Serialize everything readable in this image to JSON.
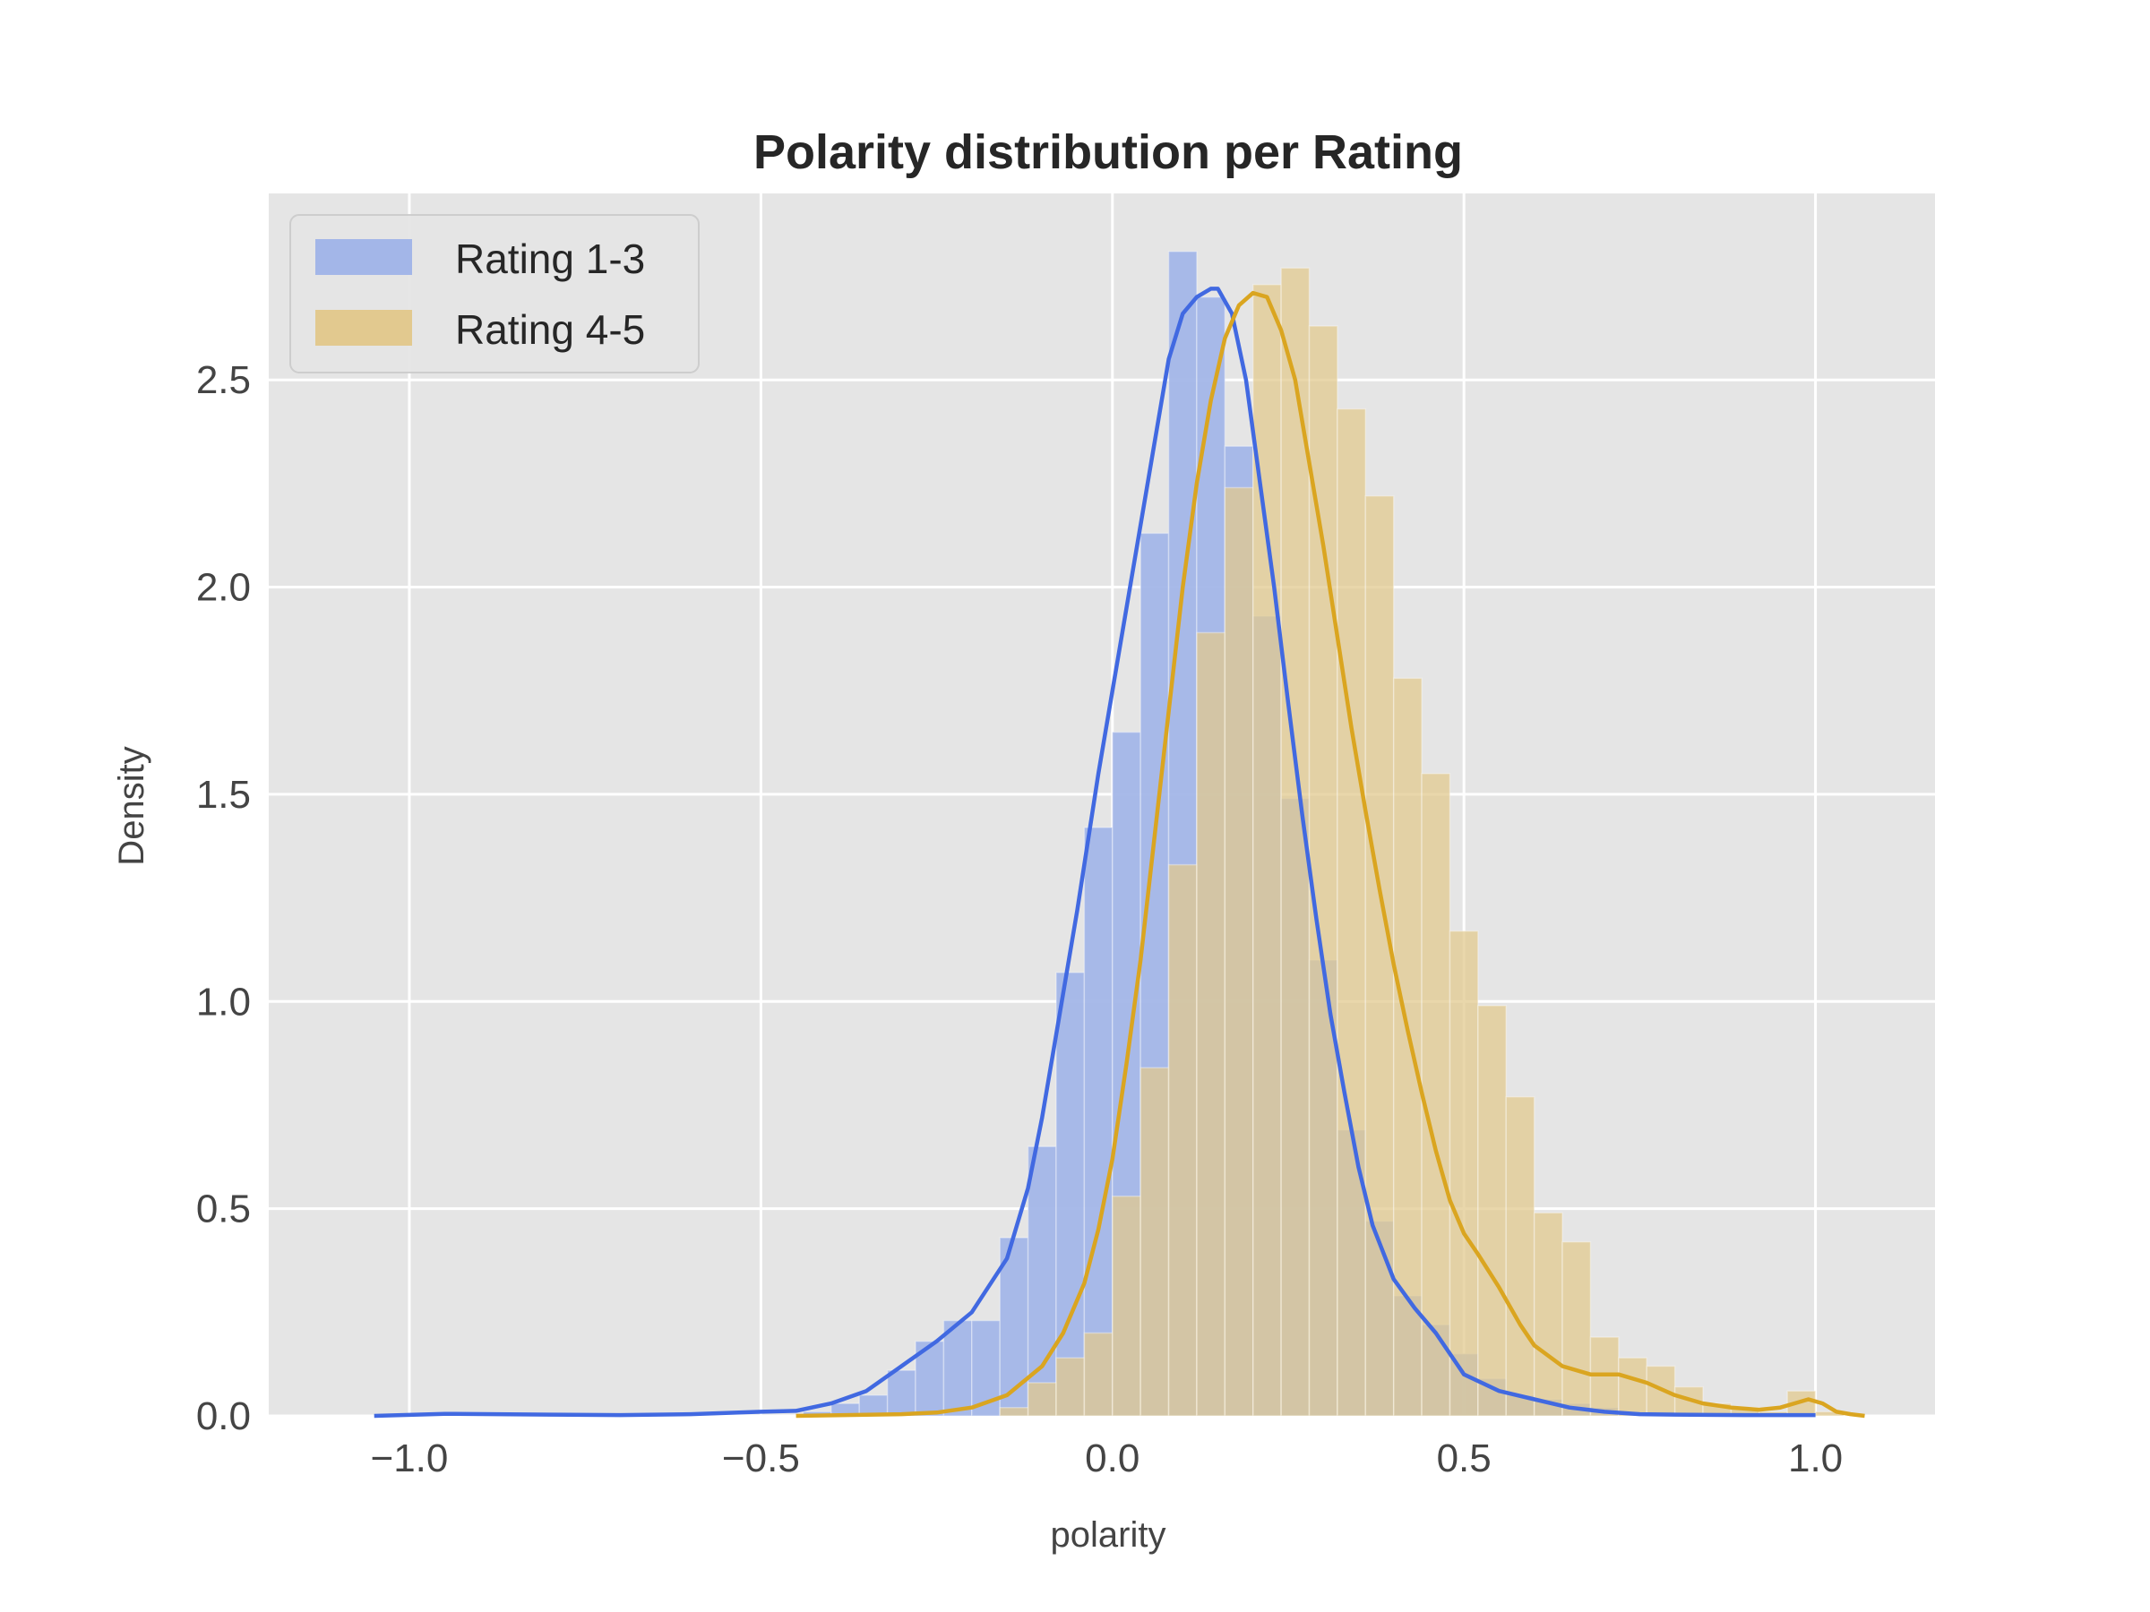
{
  "chart_data": {
    "type": "histogram+kde",
    "title": "Polarity distribution per Rating",
    "xlabel": "polarity",
    "ylabel": "Density",
    "xlim": [
      -1.2,
      1.17
    ],
    "ylim": [
      0,
      2.95
    ],
    "xticks": [
      -1.0,
      -0.5,
      0.0,
      0.5,
      1.0
    ],
    "xtick_labels": [
      "−1.0",
      "−0.5",
      "0.0",
      "0.5",
      "1.0"
    ],
    "yticks": [
      0.0,
      0.5,
      1.0,
      1.5,
      2.0,
      2.5
    ],
    "ytick_labels": [
      "0.0",
      "0.5",
      "1.0",
      "1.5",
      "2.0",
      "2.5"
    ],
    "grid": true,
    "legend_position": "top-left",
    "series": [
      {
        "name": "Rating 1-3",
        "color": "#4169e1",
        "bar_color": "#a3b6e8",
        "bin_width": 0.04,
        "bins": [
          {
            "x0": -0.44,
            "h": 0.01
          },
          {
            "x0": -0.4,
            "h": 0.03
          },
          {
            "x0": -0.36,
            "h": 0.05
          },
          {
            "x0": -0.32,
            "h": 0.11
          },
          {
            "x0": -0.28,
            "h": 0.18
          },
          {
            "x0": -0.24,
            "h": 0.23
          },
          {
            "x0": -0.2,
            "h": 0.23
          },
          {
            "x0": -0.16,
            "h": 0.43
          },
          {
            "x0": -0.12,
            "h": 0.65
          },
          {
            "x0": -0.08,
            "h": 1.07
          },
          {
            "x0": -0.04,
            "h": 1.42
          },
          {
            "x0": 0.0,
            "h": 1.65
          },
          {
            "x0": 0.04,
            "h": 2.13
          },
          {
            "x0": 0.08,
            "h": 2.81
          },
          {
            "x0": 0.12,
            "h": 2.7
          },
          {
            "x0": 0.16,
            "h": 2.34
          },
          {
            "x0": 0.2,
            "h": 1.93
          },
          {
            "x0": 0.24,
            "h": 1.49
          },
          {
            "x0": 0.28,
            "h": 1.1
          },
          {
            "x0": 0.32,
            "h": 0.69
          },
          {
            "x0": 0.36,
            "h": 0.47
          },
          {
            "x0": 0.4,
            "h": 0.29
          },
          {
            "x0": 0.44,
            "h": 0.22
          },
          {
            "x0": 0.48,
            "h": 0.15
          },
          {
            "x0": 0.52,
            "h": 0.09
          },
          {
            "x0": 0.56,
            "h": 0.05
          },
          {
            "x0": 0.6,
            "h": 0.04
          },
          {
            "x0": 0.64,
            "h": 0.03
          },
          {
            "x0": 0.68,
            "h": 0.02
          },
          {
            "x0": 0.72,
            "h": 0.01
          },
          {
            "x0": 0.76,
            "h": 0.01
          }
        ],
        "kde": [
          [
            -1.05,
            0.0
          ],
          [
            -0.95,
            0.005
          ],
          [
            -0.8,
            0.003
          ],
          [
            -0.7,
            0.002
          ],
          [
            -0.6,
            0.004
          ],
          [
            -0.5,
            0.01
          ],
          [
            -0.45,
            0.012
          ],
          [
            -0.4,
            0.03
          ],
          [
            -0.35,
            0.06
          ],
          [
            -0.3,
            0.12
          ],
          [
            -0.25,
            0.18
          ],
          [
            -0.2,
            0.25
          ],
          [
            -0.15,
            0.38
          ],
          [
            -0.12,
            0.55
          ],
          [
            -0.1,
            0.72
          ],
          [
            -0.08,
            0.92
          ],
          [
            -0.05,
            1.22
          ],
          [
            -0.02,
            1.55
          ],
          [
            0.0,
            1.75
          ],
          [
            0.02,
            1.95
          ],
          [
            0.04,
            2.15
          ],
          [
            0.06,
            2.35
          ],
          [
            0.08,
            2.55
          ],
          [
            0.1,
            2.66
          ],
          [
            0.12,
            2.7
          ],
          [
            0.14,
            2.72
          ],
          [
            0.15,
            2.72
          ],
          [
            0.17,
            2.66
          ],
          [
            0.19,
            2.5
          ],
          [
            0.21,
            2.25
          ],
          [
            0.23,
            2.0
          ],
          [
            0.25,
            1.72
          ],
          [
            0.27,
            1.45
          ],
          [
            0.29,
            1.2
          ],
          [
            0.31,
            0.97
          ],
          [
            0.33,
            0.78
          ],
          [
            0.35,
            0.6
          ],
          [
            0.37,
            0.46
          ],
          [
            0.4,
            0.33
          ],
          [
            0.43,
            0.26
          ],
          [
            0.46,
            0.2
          ],
          [
            0.48,
            0.15
          ],
          [
            0.5,
            0.1
          ],
          [
            0.55,
            0.06
          ],
          [
            0.6,
            0.04
          ],
          [
            0.65,
            0.02
          ],
          [
            0.7,
            0.01
          ],
          [
            0.75,
            0.004
          ],
          [
            0.8,
            0.003
          ],
          [
            0.9,
            0.002
          ],
          [
            1.0,
            0.002
          ]
        ]
      },
      {
        "name": "Rating 4-5",
        "color": "#daa520",
        "bar_color": "#e2c98f",
        "bin_width": 0.04,
        "bins": [
          {
            "x0": -0.16,
            "h": 0.02
          },
          {
            "x0": -0.12,
            "h": 0.08
          },
          {
            "x0": -0.08,
            "h": 0.14
          },
          {
            "x0": -0.04,
            "h": 0.2
          },
          {
            "x0": 0.0,
            "h": 0.53
          },
          {
            "x0": 0.04,
            "h": 0.84
          },
          {
            "x0": 0.08,
            "h": 1.33
          },
          {
            "x0": 0.12,
            "h": 1.89
          },
          {
            "x0": 0.16,
            "h": 2.24
          },
          {
            "x0": 0.2,
            "h": 2.73
          },
          {
            "x0": 0.24,
            "h": 2.77
          },
          {
            "x0": 0.28,
            "h": 2.63
          },
          {
            "x0": 0.32,
            "h": 2.43
          },
          {
            "x0": 0.36,
            "h": 2.22
          },
          {
            "x0": 0.4,
            "h": 1.78
          },
          {
            "x0": 0.44,
            "h": 1.55
          },
          {
            "x0": 0.48,
            "h": 1.17
          },
          {
            "x0": 0.52,
            "h": 0.99
          },
          {
            "x0": 0.56,
            "h": 0.77
          },
          {
            "x0": 0.6,
            "h": 0.49
          },
          {
            "x0": 0.64,
            "h": 0.42
          },
          {
            "x0": 0.68,
            "h": 0.19
          },
          {
            "x0": 0.72,
            "h": 0.14
          },
          {
            "x0": 0.76,
            "h": 0.12
          },
          {
            "x0": 0.8,
            "h": 0.07
          },
          {
            "x0": 0.84,
            "h": 0.03
          },
          {
            "x0": 0.88,
            "h": 0.02
          },
          {
            "x0": 0.92,
            "h": 0.01
          },
          {
            "x0": 0.96,
            "h": 0.06
          },
          {
            "x0": 1.0,
            "h": 0.01
          }
        ],
        "kde": [
          [
            -0.45,
            0.0
          ],
          [
            -0.3,
            0.004
          ],
          [
            -0.25,
            0.008
          ],
          [
            -0.2,
            0.02
          ],
          [
            -0.15,
            0.05
          ],
          [
            -0.1,
            0.12
          ],
          [
            -0.07,
            0.2
          ],
          [
            -0.04,
            0.32
          ],
          [
            -0.02,
            0.45
          ],
          [
            0.0,
            0.62
          ],
          [
            0.02,
            0.85
          ],
          [
            0.04,
            1.1
          ],
          [
            0.06,
            1.4
          ],
          [
            0.08,
            1.7
          ],
          [
            0.1,
            2.0
          ],
          [
            0.12,
            2.25
          ],
          [
            0.14,
            2.45
          ],
          [
            0.16,
            2.6
          ],
          [
            0.18,
            2.68
          ],
          [
            0.2,
            2.71
          ],
          [
            0.22,
            2.7
          ],
          [
            0.24,
            2.62
          ],
          [
            0.26,
            2.5
          ],
          [
            0.28,
            2.3
          ],
          [
            0.3,
            2.1
          ],
          [
            0.32,
            1.88
          ],
          [
            0.34,
            1.66
          ],
          [
            0.36,
            1.46
          ],
          [
            0.38,
            1.27
          ],
          [
            0.4,
            1.09
          ],
          [
            0.42,
            0.93
          ],
          [
            0.44,
            0.78
          ],
          [
            0.46,
            0.64
          ],
          [
            0.48,
            0.52
          ],
          [
            0.5,
            0.44
          ],
          [
            0.52,
            0.39
          ],
          [
            0.55,
            0.31
          ],
          [
            0.58,
            0.22
          ],
          [
            0.6,
            0.17
          ],
          [
            0.64,
            0.12
          ],
          [
            0.68,
            0.1
          ],
          [
            0.72,
            0.1
          ],
          [
            0.76,
            0.08
          ],
          [
            0.8,
            0.05
          ],
          [
            0.84,
            0.03
          ],
          [
            0.88,
            0.02
          ],
          [
            0.92,
            0.015
          ],
          [
            0.95,
            0.02
          ],
          [
            0.97,
            0.03
          ],
          [
            0.99,
            0.04
          ],
          [
            1.01,
            0.03
          ],
          [
            1.03,
            0.01
          ],
          [
            1.05,
            0.004
          ],
          [
            1.07,
            0.0
          ]
        ]
      }
    ]
  }
}
